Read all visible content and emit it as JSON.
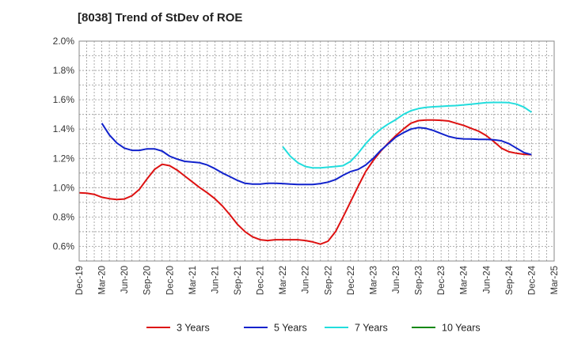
{
  "chart_data": {
    "type": "line",
    "title": "[8038]  Trend of StDev of ROE",
    "xlabel": "",
    "ylabel": "",
    "ylim": [
      0.5,
      2.0
    ],
    "yticks": [
      "0.6%",
      "0.8%",
      "1.0%",
      "1.2%",
      "1.4%",
      "1.6%",
      "1.8%",
      "2.0%"
    ],
    "x_tick_labels": [
      "Dec-19",
      "Mar-20",
      "Jun-20",
      "Sep-20",
      "Dec-20",
      "Mar-21",
      "Jun-21",
      "Sep-21",
      "Dec-21",
      "Mar-22",
      "Jun-22",
      "Sep-22",
      "Dec-22",
      "Mar-23",
      "Jun-23",
      "Sep-23",
      "Dec-23",
      "Mar-24",
      "Jun-24",
      "Sep-24",
      "Dec-24",
      "Mar-25"
    ],
    "grid": true,
    "legend_position": "bottom",
    "series": [
      {
        "name": "3 Years",
        "color": "#dd1111",
        "x": [
          0,
          1,
          2,
          3,
          4,
          5,
          6,
          7,
          8,
          9,
          10,
          11,
          12,
          13,
          14,
          15,
          16,
          17,
          18,
          19,
          20,
          21,
          22,
          23,
          24,
          25,
          26,
          27,
          28,
          29,
          30,
          31,
          32,
          33,
          34,
          35,
          36,
          37,
          38,
          39,
          40,
          41,
          42,
          43,
          44,
          45,
          46,
          47,
          48,
          49,
          50,
          51,
          52,
          53,
          54,
          55,
          56,
          57,
          58,
          59,
          60
        ],
        "y": [
          0.965,
          0.963,
          0.955,
          0.935,
          0.925,
          0.92,
          0.923,
          0.945,
          0.99,
          1.06,
          1.125,
          1.16,
          1.15,
          1.12,
          1.08,
          1.04,
          1.0,
          0.965,
          0.925,
          0.875,
          0.815,
          0.75,
          0.7,
          0.665,
          0.645,
          0.64,
          0.645,
          0.645,
          0.645,
          0.645,
          0.64,
          0.63,
          0.615,
          0.635,
          0.7,
          0.8,
          0.905,
          1.01,
          1.11,
          1.185,
          1.25,
          1.305,
          1.355,
          1.4,
          1.44,
          1.458,
          1.462,
          1.462,
          1.46,
          1.455,
          1.44,
          1.425,
          1.405,
          1.385,
          1.355,
          1.315,
          1.27,
          1.245,
          1.235,
          1.228,
          1.225
        ]
      },
      {
        "name": "5 Years",
        "color": "#1122cc",
        "x": [
          3,
          4,
          5,
          6,
          7,
          8,
          9,
          10,
          11,
          12,
          13,
          14,
          15,
          16,
          17,
          18,
          19,
          20,
          21,
          22,
          23,
          24,
          25,
          26,
          27,
          28,
          29,
          30,
          31,
          32,
          33,
          34,
          35,
          36,
          37,
          38,
          39,
          40,
          41,
          42,
          43,
          44,
          45,
          46,
          47,
          48,
          49,
          50,
          51,
          52,
          53,
          54,
          55,
          56,
          57,
          58,
          59,
          60
        ],
        "y": [
          1.44,
          1.36,
          1.305,
          1.27,
          1.255,
          1.255,
          1.265,
          1.265,
          1.25,
          1.215,
          1.195,
          1.18,
          1.175,
          1.17,
          1.155,
          1.13,
          1.1,
          1.075,
          1.05,
          1.03,
          1.025,
          1.025,
          1.03,
          1.03,
          1.028,
          1.025,
          1.022,
          1.022,
          1.022,
          1.028,
          1.038,
          1.055,
          1.085,
          1.11,
          1.125,
          1.155,
          1.2,
          1.255,
          1.3,
          1.345,
          1.375,
          1.4,
          1.41,
          1.405,
          1.39,
          1.37,
          1.35,
          1.338,
          1.333,
          1.332,
          1.33,
          1.33,
          1.327,
          1.32,
          1.3,
          1.27,
          1.24,
          1.225
        ]
      },
      {
        "name": "7 Years",
        "color": "#22dddd",
        "x": [
          27,
          28,
          29,
          30,
          31,
          32,
          33,
          34,
          35,
          36,
          37,
          38,
          39,
          40,
          41,
          42,
          43,
          44,
          45,
          46,
          47,
          48,
          49,
          50,
          51,
          52,
          53,
          54,
          55,
          56,
          57,
          58,
          59,
          60
        ],
        "y": [
          1.28,
          1.215,
          1.17,
          1.145,
          1.135,
          1.135,
          1.14,
          1.145,
          1.15,
          1.18,
          1.235,
          1.3,
          1.355,
          1.4,
          1.435,
          1.465,
          1.5,
          1.525,
          1.54,
          1.548,
          1.552,
          1.555,
          1.558,
          1.56,
          1.565,
          1.57,
          1.575,
          1.58,
          1.582,
          1.582,
          1.58,
          1.57,
          1.55,
          1.515
        ]
      },
      {
        "name": "10 Years",
        "color": "#118811",
        "x": [],
        "y": []
      }
    ]
  }
}
